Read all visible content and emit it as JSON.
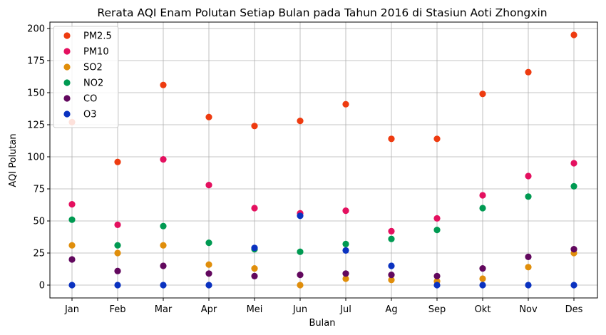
{
  "chart_data": {
    "type": "scatter",
    "title": "Rerata AQI Enam Polutan Setiap Bulan pada Tahun 2016 di Stasiun Aoti Zhongxin",
    "xlabel": "Bulan",
    "ylabel": "AQI Polutan",
    "categories": [
      "Jan",
      "Feb",
      "Mar",
      "Apr",
      "Mei",
      "Jun",
      "Jul",
      "Ag",
      "Sep",
      "Okt",
      "Nov",
      "Des"
    ],
    "ylim": [
      -10,
      205
    ],
    "yticks": [
      0,
      25,
      50,
      75,
      100,
      125,
      150,
      175,
      200
    ],
    "grid": true,
    "legend_position": "top-left",
    "series": [
      {
        "name": "PM2.5",
        "color": "#ee3b10",
        "values": [
          127,
          96,
          156,
          131,
          124,
          128,
          141,
          114,
          114,
          149,
          166,
          195
        ]
      },
      {
        "name": "PM10",
        "color": "#e4105f",
        "values": [
          63,
          47,
          98,
          78,
          60,
          56,
          58,
          42,
          52,
          70,
          85,
          95
        ]
      },
      {
        "name": "SO2",
        "color": "#e08e0b",
        "values": [
          31,
          25,
          31,
          16,
          13,
          0,
          5,
          4,
          3,
          5,
          14,
          25
        ]
      },
      {
        "name": "NO2",
        "color": "#009a52",
        "values": [
          51,
          31,
          46,
          33,
          28,
          26,
          32,
          36,
          43,
          60,
          69,
          77
        ]
      },
      {
        "name": "CO",
        "color": "#62085e",
        "values": [
          20,
          11,
          15,
          9,
          7,
          8,
          9,
          8,
          7,
          13,
          22,
          28
        ]
      },
      {
        "name": "O3",
        "color": "#0a32c0",
        "values": [
          0,
          0,
          0,
          0,
          29,
          54,
          27,
          15,
          0,
          0,
          0,
          0
        ]
      }
    ]
  }
}
